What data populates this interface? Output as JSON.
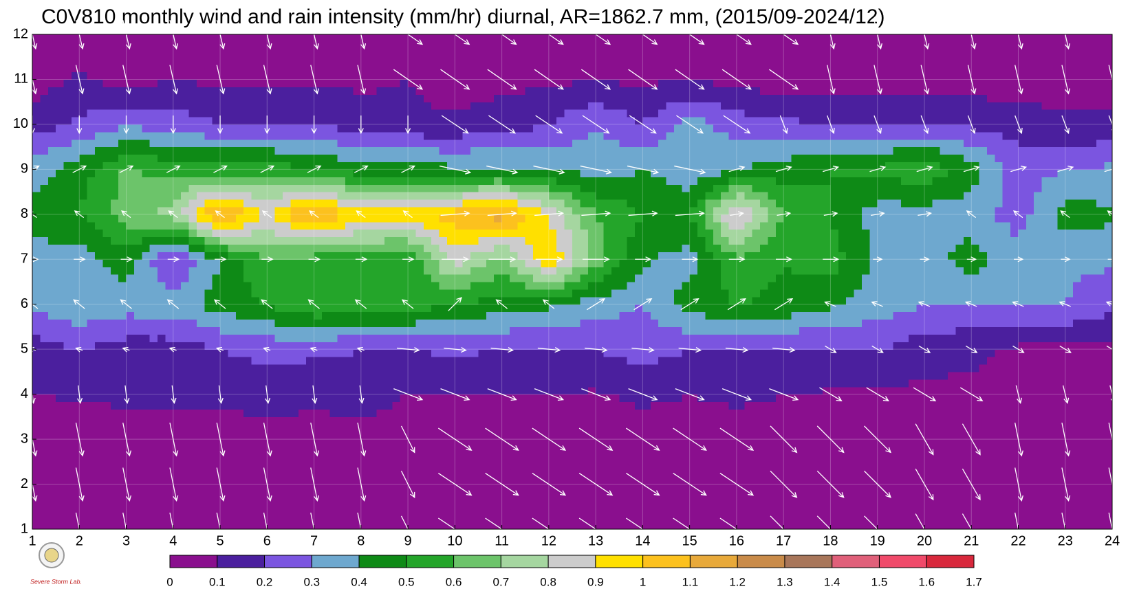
{
  "chart_data": {
    "type": "contour",
    "title": "C0V810 monthly wind and rain intensity (mm/hr) diurnal, AR=1862.7 mm, (2015/09-2024/12)",
    "logo_text": "Severe Storm Lab.",
    "x": [
      1,
      2,
      3,
      4,
      5,
      6,
      7,
      8,
      9,
      10,
      11,
      12,
      13,
      14,
      15,
      16,
      17,
      18,
      19,
      20,
      21,
      22,
      23,
      24
    ],
    "y": [
      1,
      2,
      3,
      4,
      5,
      6,
      7,
      8,
      9,
      10,
      11,
      12
    ],
    "xlim": [
      1,
      24
    ],
    "ylim": [
      1,
      12
    ],
    "xticks": [
      1,
      2,
      3,
      4,
      5,
      6,
      7,
      8,
      9,
      10,
      11,
      12,
      13,
      14,
      15,
      16,
      17,
      18,
      19,
      20,
      21,
      22,
      23,
      24
    ],
    "yticks": [
      1,
      2,
      3,
      4,
      5,
      6,
      7,
      8,
      9,
      10,
      11,
      12
    ],
    "grid": true,
    "levels": [
      0,
      0.1,
      0.2,
      0.3,
      0.4,
      0.5,
      0.6,
      0.7,
      0.8,
      0.9,
      1,
      1.1,
      1.2,
      1.3,
      1.4,
      1.5,
      1.6,
      1.7
    ],
    "colors": [
      "#8a0f8e",
      "#4b1f9e",
      "#7b55e0",
      "#6ea8cf",
      "#0e8a16",
      "#24a52a",
      "#6cc46a",
      "#a5d6a0",
      "#cccccc",
      "#ffe000",
      "#fcc11e",
      "#e8a93a",
      "#c98b49",
      "#a8765a",
      "#e0607a",
      "#f04a6a",
      "#d8283c"
    ],
    "rain": [
      [
        0.05,
        0.05,
        0.05,
        0.05,
        0.05,
        0.05,
        0.05,
        0.05,
        0.05,
        0.05,
        0.05,
        0.05,
        0.05,
        0.05,
        0.05,
        0.05,
        0.05,
        0.05,
        0.05,
        0.05,
        0.05,
        0.05,
        0.05,
        0.05
      ],
      [
        0.05,
        0.05,
        0.05,
        0.05,
        0.05,
        0.05,
        0.05,
        0.05,
        0.05,
        0.05,
        0.05,
        0.05,
        0.05,
        0.05,
        0.05,
        0.05,
        0.05,
        0.05,
        0.05,
        0.05,
        0.05,
        0.05,
        0.05,
        0.05
      ],
      [
        0.05,
        0.05,
        0.05,
        0.05,
        0.05,
        0.05,
        0.05,
        0.05,
        0.05,
        0.05,
        0.05,
        0.05,
        0.05,
        0.05,
        0.05,
        0.05,
        0.05,
        0.05,
        0.05,
        0.05,
        0.05,
        0.05,
        0.05,
        0.05
      ],
      [
        0.1,
        0.11,
        0.12,
        0.12,
        0.12,
        0.15,
        0.13,
        0.15,
        0.1,
        0.1,
        0.1,
        0.1,
        0.09,
        0.12,
        0.1,
        0.12,
        0.1,
        0.09,
        0.09,
        0.07,
        0.08,
        0.1,
        0.05,
        0.05
      ],
      [
        0.15,
        0.2,
        0.15,
        0.15,
        0.2,
        0.23,
        0.22,
        0.2,
        0.2,
        0.22,
        0.2,
        0.18,
        0.2,
        0.25,
        0.2,
        0.18,
        0.18,
        0.2,
        0.2,
        0.15,
        0.12,
        0.08,
        0.08,
        0.08
      ],
      [
        0.32,
        0.38,
        0.35,
        0.35,
        0.45,
        0.5,
        0.6,
        0.55,
        0.55,
        0.5,
        0.45,
        0.42,
        0.35,
        0.3,
        0.45,
        0.5,
        0.48,
        0.42,
        0.35,
        0.3,
        0.3,
        0.3,
        0.3,
        0.22
      ],
      [
        0.35,
        0.35,
        0.45,
        0.18,
        0.4,
        0.6,
        0.55,
        0.55,
        0.5,
        0.85,
        0.65,
        1.0,
        0.65,
        0.42,
        0.35,
        0.58,
        0.5,
        0.55,
        0.38,
        0.35,
        0.45,
        0.35,
        0.32,
        0.32
      ],
      [
        0.45,
        0.5,
        0.65,
        0.75,
        1.15,
        0.9,
        1.15,
        0.95,
        0.95,
        1.05,
        1.15,
        0.9,
        0.6,
        0.5,
        0.5,
        0.95,
        0.6,
        0.5,
        0.35,
        0.35,
        0.35,
        0.25,
        0.45,
        0.42
      ],
      [
        0.35,
        0.45,
        0.62,
        0.55,
        0.55,
        0.55,
        0.5,
        0.45,
        0.45,
        0.42,
        0.42,
        0.4,
        0.35,
        0.4,
        0.32,
        0.4,
        0.45,
        0.5,
        0.52,
        0.58,
        0.45,
        0.25,
        0.3,
        0.32
      ],
      [
        0.15,
        0.22,
        0.28,
        0.25,
        0.2,
        0.2,
        0.2,
        0.15,
        0.12,
        0.12,
        0.15,
        0.2,
        0.3,
        0.2,
        0.35,
        0.25,
        0.22,
        0.2,
        0.2,
        0.2,
        0.18,
        0.15,
        0.12,
        0.12
      ],
      [
        0.05,
        0.12,
        0.05,
        0.1,
        0.08,
        0.07,
        0.08,
        0.08,
        0.1,
        0.05,
        0.07,
        0.08,
        0.09,
        0.08,
        0.1,
        0.06,
        0.05,
        0.05,
        0.05,
        0.05,
        0.05,
        0.05,
        0.05,
        0.05
      ],
      [
        0.05,
        0.05,
        0.05,
        0.05,
        0.05,
        0.05,
        0.05,
        0.05,
        0.05,
        0.05,
        0.05,
        0.05,
        0.05,
        0.05,
        0.05,
        0.05,
        0.05,
        0.05,
        0.05,
        0.05,
        0.05,
        0.05,
        0.05,
        0.05
      ]
    ],
    "wind": {
      "u": [
        [
          0.3,
          0.3,
          0.3,
          0.3,
          0.3,
          0.3,
          0.3,
          0.3,
          0.6,
          1.5,
          1.5,
          1.5,
          1.5,
          1.5,
          1.5,
          1.5,
          1.2,
          1.2,
          1.2,
          0.8,
          0.8,
          0.3,
          0.3,
          0.3
        ],
        [
          0.3,
          0.3,
          0.3,
          0.3,
          0.3,
          0.3,
          0.3,
          0.3,
          0.6,
          1.5,
          1.5,
          1.5,
          1.5,
          1.5,
          1.5,
          1.5,
          1.2,
          1.2,
          1.2,
          0.8,
          0.8,
          0.3,
          0.3,
          0.3
        ],
        [
          0.3,
          0.3,
          0.3,
          0.3,
          0.3,
          0.3,
          0.3,
          0.3,
          0.6,
          1.5,
          1.5,
          1.5,
          1.5,
          1.5,
          1.5,
          1.5,
          1.2,
          1.2,
          1.2,
          0.8,
          0.8,
          0.3,
          0.3,
          0.3
        ],
        [
          0.1,
          0.1,
          0.1,
          0.1,
          0.1,
          0.1,
          0.1,
          0.1,
          1.3,
          1.3,
          1.3,
          1.3,
          1.3,
          1.3,
          1.3,
          1.3,
          1.3,
          1.0,
          1.0,
          1.0,
          1.0,
          0.2,
          0.2,
          0.2
        ],
        [
          -0.3,
          -0.3,
          -0.3,
          -0.3,
          -0.3,
          -0.3,
          -0.3,
          -0.3,
          1.0,
          1.0,
          1.0,
          1.0,
          1.0,
          1.0,
          1.0,
          1.0,
          1.0,
          0.5,
          0.5,
          0.5,
          0.5,
          0.5,
          0.5,
          0.5
        ],
        [
          -0.5,
          -0.5,
          -0.5,
          -0.5,
          -0.5,
          -0.5,
          -0.5,
          -0.5,
          -0.5,
          0.6,
          -0.5,
          -0.5,
          0.8,
          0.8,
          0.8,
          0.8,
          0.8,
          -0.5,
          -0.5,
          -0.5,
          -0.5,
          -0.5,
          -0.5,
          -0.5
        ],
        [
          0.5,
          0.5,
          0.5,
          0.5,
          0.5,
          0.5,
          0.5,
          0.5,
          0.5,
          1.2,
          1.2,
          1.2,
          1.2,
          0.7,
          0.7,
          0.7,
          0.7,
          0.7,
          0.4,
          0.4,
          0.4,
          0.4,
          0.4,
          0.4
        ],
        [
          -0.4,
          -0.4,
          -0.4,
          -0.4,
          -0.4,
          -0.4,
          -0.4,
          -0.4,
          -0.4,
          1.3,
          1.3,
          1.3,
          1.3,
          1.3,
          1.3,
          0.6,
          0.6,
          0.6,
          0.6,
          0.6,
          -0.4,
          -0.4,
          -0.4,
          -0.4
        ],
        [
          0.6,
          0.6,
          0.6,
          0.6,
          0.6,
          0.6,
          0.6,
          0.6,
          0.6,
          1.4,
          1.4,
          1.4,
          1.4,
          1.4,
          1.4,
          0.7,
          0.7,
          0.7,
          0.7,
          0.7,
          0.7,
          0.7,
          0.7,
          0.7
        ],
        [
          0,
          0,
          0,
          0,
          0,
          0,
          0,
          0,
          0,
          1.2,
          1.2,
          1.2,
          1.2,
          1.2,
          1.2,
          1.2,
          0.3,
          0.3,
          0.3,
          0.3,
          0.3,
          0.3,
          0.3,
          0.3
        ],
        [
          0.3,
          0.3,
          0.3,
          0.3,
          0.3,
          0.3,
          0.3,
          0.3,
          1.3,
          1.3,
          1.3,
          1.3,
          1.3,
          1.3,
          1.3,
          1.3,
          1.3,
          0.3,
          0.3,
          0.3,
          0.3,
          0.3,
          0.3,
          0.3
        ],
        [
          0.3,
          0.3,
          0.3,
          0.3,
          0.3,
          0.3,
          0.3,
          0.3,
          1.3,
          1.3,
          1.3,
          1.3,
          1.3,
          1.3,
          1.3,
          1.3,
          1.3,
          0.3,
          0.3,
          0.3,
          0.3,
          0.3,
          0.3,
          0.3
        ]
      ],
      "v": [
        [
          -1.5,
          -1.5,
          -1.5,
          -1.5,
          -1.5,
          -1.5,
          -1.5,
          -1.5,
          -1.2,
          -1.0,
          -1.0,
          -1.0,
          -1.0,
          -1.0,
          -1.0,
          -1.0,
          -1.2,
          -1.2,
          -1.2,
          -1.4,
          -1.4,
          -1.5,
          -1.5,
          -1.5
        ],
        [
          -1.5,
          -1.5,
          -1.5,
          -1.5,
          -1.5,
          -1.5,
          -1.5,
          -1.5,
          -1.2,
          -1.0,
          -1.0,
          -1.0,
          -1.0,
          -1.0,
          -1.0,
          -1.0,
          -1.2,
          -1.2,
          -1.2,
          -1.4,
          -1.4,
          -1.5,
          -1.5,
          -1.5
        ],
        [
          -1.5,
          -1.5,
          -1.5,
          -1.5,
          -1.5,
          -1.5,
          -1.5,
          -1.5,
          -1.2,
          -1.0,
          -1.0,
          -1.0,
          -1.0,
          -1.0,
          -1.0,
          -1.0,
          -1.2,
          -1.2,
          -1.2,
          -1.4,
          -1.4,
          -1.5,
          -1.5,
          -1.5
        ],
        [
          -0.8,
          -0.8,
          -0.8,
          -0.8,
          -0.8,
          -0.8,
          -0.8,
          -0.8,
          -0.5,
          -0.5,
          -0.5,
          -0.5,
          -0.5,
          -0.5,
          -0.5,
          -0.5,
          -0.5,
          -0.6,
          -0.6,
          -0.6,
          -0.6,
          -0.8,
          -0.8,
          -0.8
        ],
        [
          0.1,
          0.1,
          0.1,
          0.1,
          0.1,
          0.1,
          0.1,
          0.1,
          -0.1,
          -0.1,
          -0.1,
          -0.1,
          -0.1,
          -0.1,
          -0.1,
          -0.1,
          -0.1,
          -0.3,
          -0.3,
          -0.3,
          -0.3,
          -0.3,
          -0.3,
          -0.3
        ],
        [
          0.4,
          0.4,
          0.4,
          0.4,
          0.4,
          0.4,
          0.4,
          0.4,
          0.4,
          0.6,
          0.4,
          0.4,
          0.5,
          0.5,
          0.5,
          0.5,
          0.5,
          0.2,
          0.2,
          0.2,
          0.2,
          0.2,
          0.2,
          0.2
        ],
        [
          0,
          0,
          0,
          0,
          0,
          0,
          0,
          0,
          0,
          0,
          0,
          0,
          0,
          0,
          0,
          0,
          0,
          0,
          0,
          0,
          0,
          0,
          0,
          0
        ],
        [
          0.3,
          0.3,
          0.3,
          0.3,
          0.3,
          0.3,
          0.3,
          0.3,
          0.3,
          0.1,
          0.1,
          0.1,
          0.1,
          0.1,
          0.1,
          0.1,
          0.1,
          0.1,
          0.1,
          0.1,
          0.3,
          0.3,
          0.3,
          0.3
        ],
        [
          0.3,
          0.3,
          0.3,
          0.3,
          0.3,
          0.3,
          0.3,
          0.3,
          0.3,
          -0.3,
          -0.3,
          -0.3,
          -0.3,
          -0.3,
          -0.3,
          0.2,
          0.2,
          0.2,
          0.2,
          0.2,
          0.2,
          0.2,
          0.2,
          0.2
        ],
        [
          -0.8,
          -0.8,
          -0.8,
          -0.8,
          -0.8,
          -0.8,
          -0.8,
          -0.8,
          -0.8,
          -0.8,
          -0.8,
          -0.8,
          -0.8,
          -0.8,
          -0.8,
          -0.8,
          -0.8,
          -0.8,
          -0.8,
          -0.8,
          -0.8,
          -0.8,
          -0.8,
          -0.8
        ],
        [
          -1.3,
          -1.3,
          -1.3,
          -1.3,
          -1.3,
          -1.3,
          -1.3,
          -1.3,
          -0.9,
          -0.9,
          -0.9,
          -0.9,
          -0.9,
          -0.9,
          -0.9,
          -0.9,
          -0.9,
          -1.3,
          -1.3,
          -1.3,
          -1.3,
          -1.3,
          -1.3,
          -1.3
        ],
        [
          -1.3,
          -1.3,
          -1.3,
          -1.3,
          -1.3,
          -1.3,
          -1.3,
          -1.3,
          -0.9,
          -0.9,
          -0.9,
          -0.9,
          -0.9,
          -0.9,
          -0.9,
          -0.9,
          -0.9,
          -1.3,
          -1.3,
          -1.3,
          -1.3,
          -1.3,
          -1.3,
          -1.3
        ]
      ]
    }
  }
}
